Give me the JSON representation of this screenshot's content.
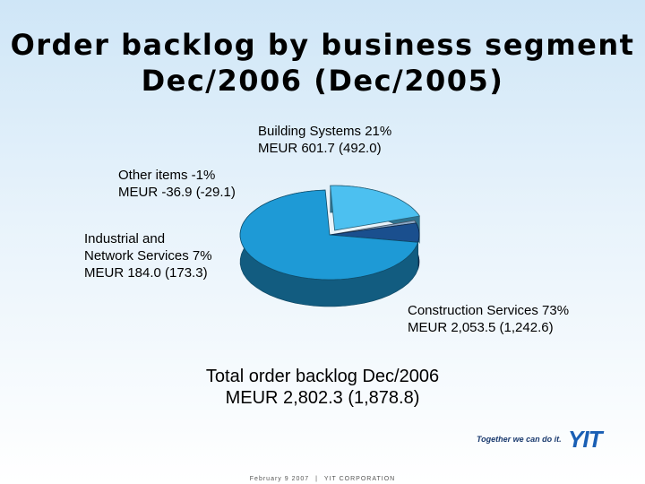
{
  "title_line1": "Order backlog by business segment",
  "title_line2": "Dec/2006 (Dec/2005)",
  "chart_data": {
    "type": "pie",
    "slices": [
      {
        "name": "Construction Services",
        "percent": 73,
        "value": 2053.5,
        "prev_value": 1242.6,
        "color": "#1e9ad6",
        "label1": "Construction Services 73%",
        "label2": "MEUR 2,053.5 (1,242.6)"
      },
      {
        "name": "Building Systems",
        "percent": 21,
        "value": 601.7,
        "prev_value": 492.0,
        "color": "#4cc0f0",
        "label1": "Building Systems  21%",
        "label2": "MEUR 601.7 (492.0)"
      },
      {
        "name": "Other items",
        "percent": -1,
        "value": -36.9,
        "prev_value": -29.1,
        "color": "#8aa6c4",
        "label1": "Other items -1%",
        "label2": "MEUR -36.9 (-29.1)"
      },
      {
        "name": "Industrial and Network Services",
        "percent": 7,
        "value": 184.0,
        "prev_value": 173.3,
        "color": "#1a4f8e",
        "label1": "Industrial and",
        "label1b": "Network Services  7%",
        "label2": "MEUR 184.0 (173.3)"
      }
    ],
    "total_line1": "Total order backlog Dec/2006",
    "total_line2": "MEUR 2,802.3 (1,878.8)"
  },
  "logo": {
    "slogan": "Together we can do it.",
    "mark": "YIT"
  },
  "footer": {
    "date": "February 9 2007",
    "separator": "|",
    "company": "YIT CORPORATION"
  }
}
